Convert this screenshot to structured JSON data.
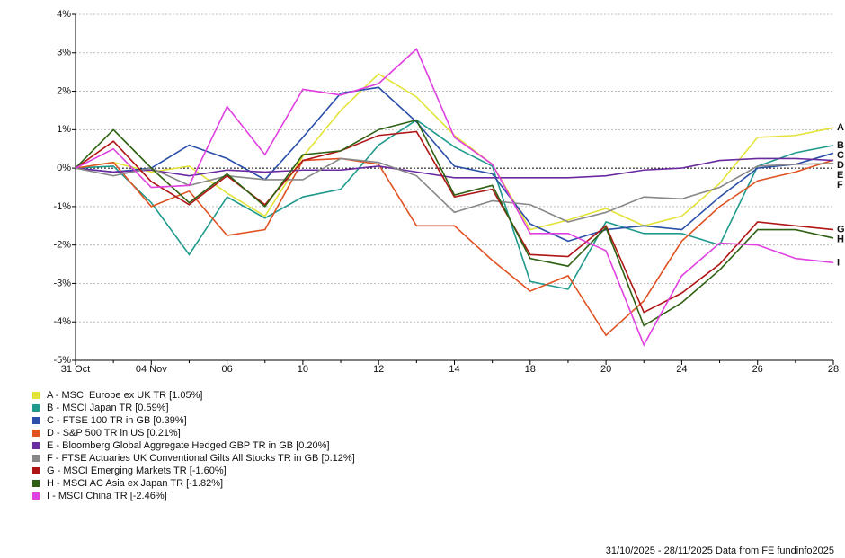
{
  "chart_data": {
    "type": "line",
    "categories": [
      "31 Oct",
      null,
      "04 Nov",
      null,
      "06",
      null,
      "10",
      null,
      "12",
      null,
      "14",
      null,
      "18",
      null,
      "20",
      null,
      "24",
      null,
      "26",
      null,
      "28"
    ],
    "ylim": [
      -5,
      4
    ],
    "yticks": [
      {
        "value": -5,
        "label": "-5%"
      },
      {
        "value": -4,
        "label": "-4%"
      },
      {
        "value": -3,
        "label": "-3%"
      },
      {
        "value": -2,
        "label": "-2%"
      },
      {
        "value": -1,
        "label": "-1%"
      },
      {
        "value": 0,
        "label": "0%"
      },
      {
        "value": 1,
        "label": "1%"
      },
      {
        "value": 2,
        "label": "2%"
      },
      {
        "value": 3,
        "label": "3%"
      },
      {
        "value": 4,
        "label": "4%"
      }
    ],
    "grid": true,
    "series": [
      {
        "name": "A - MSCI Europe ex UK TR [1.05%]",
        "end_label": "A",
        "color": "#e3e33a",
        "values": [
          0,
          0.15,
          -0.1,
          0.05,
          -0.65,
          -1.25,
          0.3,
          1.5,
          2.45,
          1.85,
          0.85,
          0.1,
          -1.6,
          -1.35,
          -1.05,
          -1.5,
          -1.25,
          -0.4,
          0.8,
          0.85,
          1.05
        ]
      },
      {
        "name": "B - MSCI Japan TR [0.59%]",
        "end_label": "B",
        "color": "#1f9a8c",
        "values": [
          0,
          0.05,
          -0.9,
          -2.25,
          -0.75,
          -1.3,
          -0.75,
          -0.55,
          0.6,
          1.25,
          0.55,
          0.05,
          -2.95,
          -3.15,
          -1.4,
          -1.7,
          -1.7,
          -2.0,
          0.05,
          0.4,
          0.59
        ]
      },
      {
        "name": "C - FTSE 100 TR in GB [0.39%]",
        "end_label": "C",
        "color": "#2a4fa8",
        "values": [
          0,
          -0.1,
          0,
          0.6,
          0.25,
          -0.3,
          0.8,
          1.95,
          2.1,
          1.2,
          0.05,
          -0.15,
          -1.45,
          -1.9,
          -1.6,
          -1.5,
          -1.6,
          -0.75,
          0,
          0.1,
          0.39
        ]
      },
      {
        "name": "D - S&P 500 TR in US [0.21%]",
        "end_label": "D",
        "color": "#e05222",
        "values": [
          0,
          0.15,
          -1.0,
          -0.6,
          -1.75,
          -1.6,
          0.2,
          0.25,
          0.1,
          -1.5,
          -1.5,
          -2.4,
          -3.2,
          -2.8,
          -4.35,
          -3.45,
          -1.9,
          -1.0,
          -0.33,
          -0.1,
          0.21
        ]
      },
      {
        "name": "E - Bloomberg Global Aggregate Hedged GBP TR in GB [0.20%]",
        "end_label": "E",
        "color": "#6a2aa0",
        "values": [
          0,
          -0.1,
          -0.05,
          -0.2,
          -0.05,
          -0.1,
          -0.05,
          -0.05,
          0.05,
          -0.1,
          -0.25,
          -0.25,
          -0.25,
          -0.25,
          -0.2,
          -0.05,
          0,
          0.2,
          0.25,
          0.25,
          0.2
        ]
      },
      {
        "name": "F - FTSE Actuaries UK Conventional Gilts All Stocks TR in GB [0.12%]",
        "end_label": "F",
        "color": "#888888",
        "values": [
          0,
          -0.2,
          0,
          -0.45,
          -0.2,
          -0.3,
          -0.3,
          0.25,
          0.15,
          -0.2,
          -1.15,
          -0.85,
          -0.95,
          -1.4,
          -1.15,
          -0.75,
          -0.8,
          -0.5,
          0.05,
          0.1,
          0.12
        ]
      },
      {
        "name": "G - MSCI Emerging Markets TR [-1.60%]",
        "end_label": "G",
        "color": "#b01515",
        "values": [
          0,
          0.7,
          -0.35,
          -0.95,
          -0.2,
          -0.95,
          0.2,
          0.45,
          0.85,
          0.95,
          -0.75,
          -0.55,
          -2.25,
          -2.3,
          -1.5,
          -3.75,
          -3.25,
          -2.5,
          -1.4,
          -1.5,
          -1.6
        ]
      },
      {
        "name": "H - MSCI AC Asia ex Japan TR [-1.82%]",
        "end_label": "H",
        "color": "#2e6012",
        "values": [
          0,
          1.0,
          0,
          -0.9,
          -0.15,
          -1.0,
          0.35,
          0.45,
          1.0,
          1.25,
          -0.7,
          -0.45,
          -2.35,
          -2.55,
          -1.55,
          -4.1,
          -3.5,
          -2.65,
          -1.6,
          -1.6,
          -1.82
        ]
      },
      {
        "name": "I - MSCI China TR [-2.46%]",
        "end_label": "I",
        "color": "#e040e0",
        "values": [
          0,
          0.5,
          -0.5,
          -0.45,
          1.6,
          0.35,
          2.05,
          1.9,
          2.2,
          3.1,
          0.8,
          0.1,
          -1.7,
          -1.7,
          -2.15,
          -4.6,
          -2.8,
          -1.95,
          -2.0,
          -2.35,
          -2.46
        ]
      }
    ],
    "footer": "31/10/2025 - 28/11/2025 Data from FE fundinfo2025"
  }
}
